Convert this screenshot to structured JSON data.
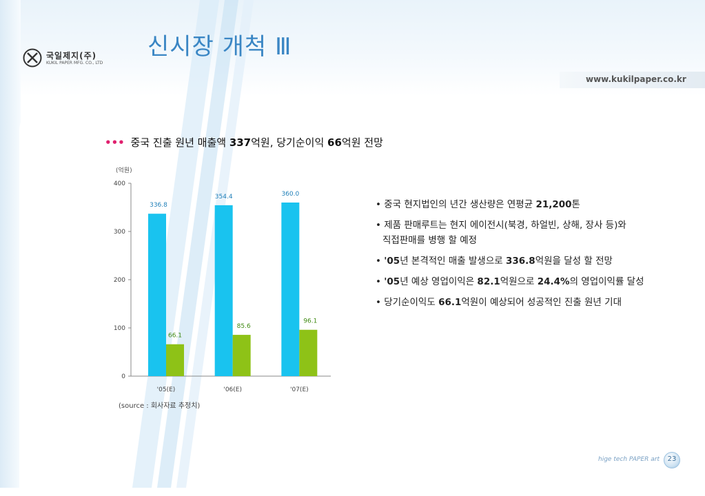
{
  "page": {
    "title": "신시장 개척 Ⅲ",
    "url": "www.kukilpaper.co.kr",
    "footer": "hige tech PAPER art",
    "page_number": "23",
    "colors": {
      "title": "#3a86c4",
      "accent_dots": "#e0206e",
      "bar_sales": "#19c3ef",
      "bar_profit": "#8ec217"
    }
  },
  "logo": {
    "name": "국일제지(주)",
    "subtitle": "KUKIL PAPER MFG. CO., LTD",
    "icon": "x-circle-logo-icon"
  },
  "heading": {
    "dots": "•••",
    "t1": " 중국 진출 원년 매출액 ",
    "b1": "337",
    "t2": "억원, 당기순이익 ",
    "b2": "66",
    "t3": "억원 전망"
  },
  "chart_data": {
    "type": "bar",
    "unit": "(억원)",
    "categories": [
      "'05(E)",
      "'06(E)",
      "'07(E)"
    ],
    "series": [
      {
        "values": [
          336.8,
          354.4,
          360.0
        ],
        "labels": [
          "336.8",
          "354.4",
          "360.0"
        ],
        "color": "#19c3ef"
      },
      {
        "values": [
          66.1,
          85.6,
          96.1
        ],
        "labels": [
          "66.1",
          "85.6",
          "96.1"
        ],
        "color": "#8ec217"
      }
    ],
    "yticks": [
      0,
      100,
      200,
      300,
      400
    ],
    "ylim": [
      0,
      400
    ],
    "grid": false
  },
  "source": "(source : 회사자료 추정치)",
  "bullets": [
    {
      "p": "• 중국 현지법인의 년간 생산량은 연평균 ",
      "b": "21,200",
      "s": "톤"
    },
    {
      "p": "• 제품 판매루트는 현지 에이전시(북경, 하얼빈, 상해, 장사 등)와"
    },
    {
      "p": "직접판매를 병행 할 예정",
      "cont": true
    },
    {
      "p": "• ",
      "b": "'05",
      "s": "년 본격적인 매출 발생으로 ",
      "b2": "336.8",
      "s2": "억원을 달성 할 전망"
    },
    {
      "p": "• ",
      "b": "'05",
      "s": "년 예상 영업이익은 ",
      "b2": "82.1",
      "s2": "억원으로 ",
      "b3": "24.4%",
      "s3": "의 영업이익률 달성"
    },
    {
      "p": "• 당기순이익도 ",
      "b": "66.1",
      "s": "억원이 예상되어 성공적인 진출 원년 기대"
    }
  ]
}
